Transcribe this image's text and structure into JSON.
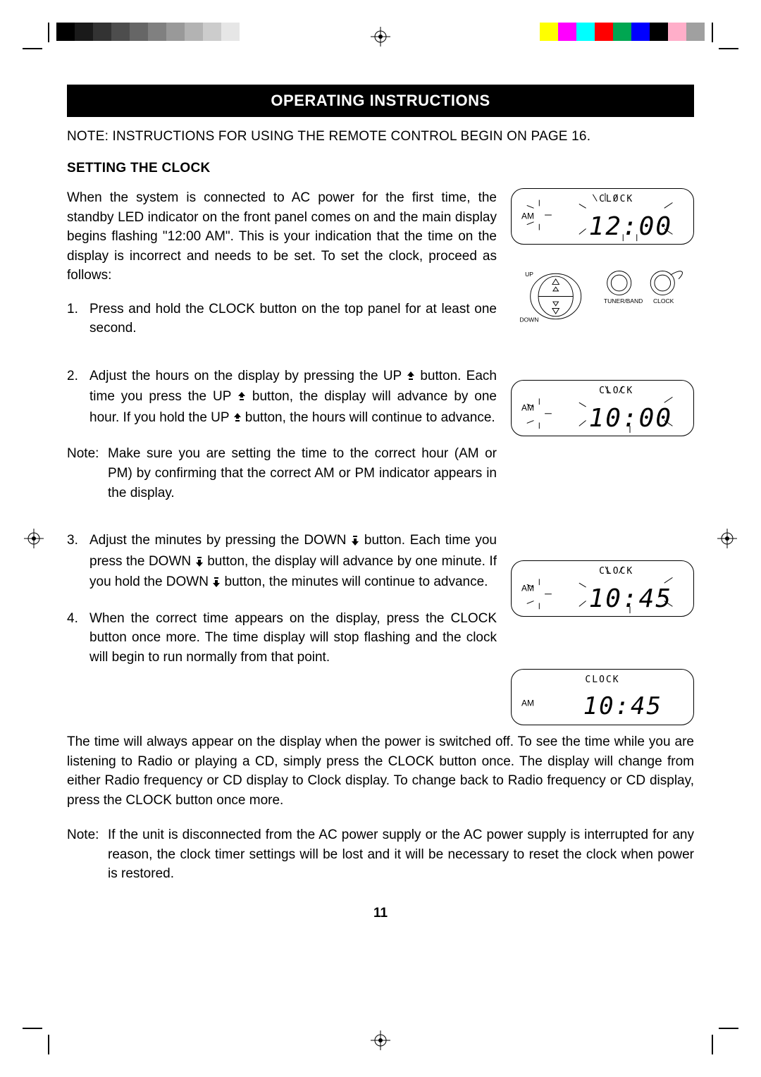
{
  "printmarks": {
    "gray_swatches": [
      "#000000",
      "#1a1a1a",
      "#333333",
      "#4d4d4d",
      "#666666",
      "#808080",
      "#999999",
      "#b3b3b3",
      "#cccccc",
      "#e6e6e6"
    ],
    "color_swatches": [
      "#ffff00",
      "#ff00ff",
      "#00ffff",
      "#ff0000",
      "#00a651",
      "#0000ff",
      "#000000",
      "#ffaec9",
      "#a0a0a0"
    ]
  },
  "header": {
    "title": "OPERATING INSTRUCTIONS",
    "top_note": "NOTE: INSTRUCTIONS FOR  USING THE REMOTE CONTROL  BEGIN ON PAGE 16."
  },
  "section": {
    "heading": "SETTING THE CLOCK",
    "intro": "When the system is connected to AC power for the first time, the standby LED indicator on the front panel comes on and the main display begins flashing \"12:00 AM\".  This is your indication that the time on the display is incorrect and needs to be set.  To set the clock, proceed as follows:",
    "step1_num": "1.",
    "step1": "Press and hold the CLOCK button on the top panel for at least one second.",
    "step2_num": "2.",
    "step2_a": "Adjust the hours on the display by pressing the UP ",
    "step2_b": " button.  Each time you press the UP ",
    "step2_c": " button, the display will advance by one hour.  If you hold the UP ",
    "step2_d": " button, the hours will continue to advance.",
    "note1_label": "Note:",
    "note1": "Make sure you are setting the time to the correct hour (AM or PM) by confirming that the correct AM or PM indicator appears in the display.",
    "step3_num": "3.",
    "step3_a": "Adjust the minutes by pressing the DOWN ",
    "step3_b": " button. Each time you press the DOWN ",
    "step3_c": " button, the display will advance by one minute. If you hold the DOWN ",
    "step3_d": " button, the minutes will continue to advance.",
    "step4_num": "4.",
    "step4": "When the correct time appears on the display, press the CLOCK button once more.  The time display will stop flashing and the clock will begin to run normally from that point.",
    "after": "The time will always appear on the display when the power is switched off. To see the time while you are listening to Radio or playing a CD, simply press the CLOCK button once.  The display will change from either Radio frequency or CD display to Clock display. To change back to Radio frequency or CD display, press the CLOCK button once more.",
    "note2_label": "Note:",
    "note2": "If the unit is disconnected from the AC power supply or the AC power supply is interrupted for any reason, the clock timer settings will be lost and it will be necessary to reset the clock when power is restored."
  },
  "figures": {
    "f1": {
      "clock": "CLOCK",
      "am": "AM",
      "time": "12:00",
      "flashing": true
    },
    "buttons": {
      "up": "UP",
      "down": "DOWN",
      "tuner": "TUNER/BAND",
      "clock": "CLOCK"
    },
    "f2": {
      "clock": "CLOCK",
      "am": "AM",
      "time": "10:00",
      "flashing": true
    },
    "f3": {
      "clock": "CLOCK",
      "am": "AM",
      "time": "10:45",
      "flashing": true
    },
    "f4": {
      "clock": "CLOCK",
      "am": "AM",
      "time": "10:45",
      "flashing": false
    }
  },
  "page_number": "11"
}
